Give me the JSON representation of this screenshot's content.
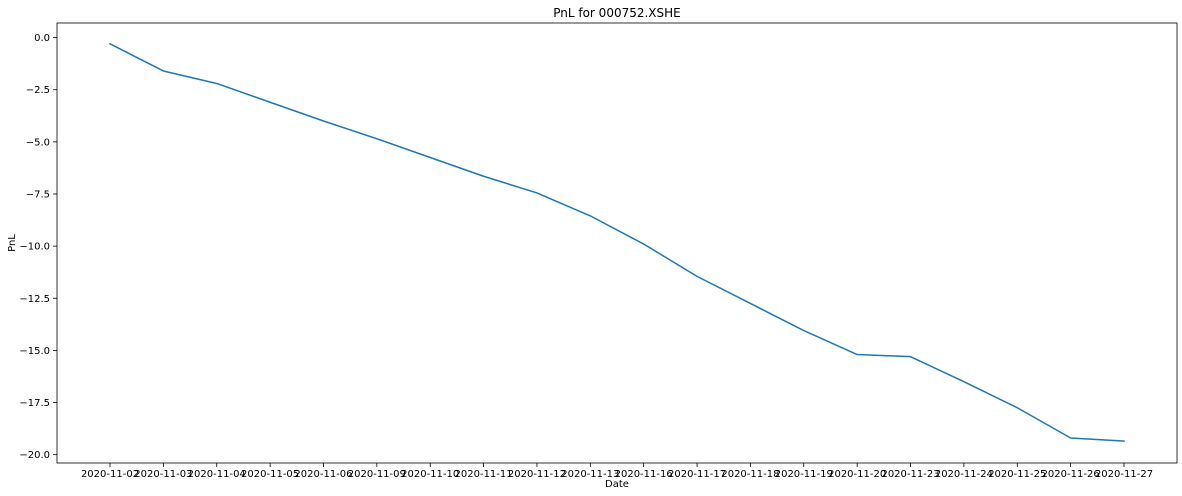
{
  "chart_data": {
    "type": "line",
    "title": "PnL for 000752.XSHE",
    "xlabel": "Date",
    "ylabel": "PnL",
    "categories": [
      "2020-11-02",
      "2020-11-03",
      "2020-11-04",
      "2020-11-05",
      "2020-11-06",
      "2020-11-09",
      "2020-11-10",
      "2020-11-11",
      "2020-11-12",
      "2020-11-13",
      "2020-11-16",
      "2020-11-17",
      "2020-11-18",
      "2020-11-19",
      "2020-11-20",
      "2020-11-23",
      "2020-11-24",
      "2020-11-25",
      "2020-11-26",
      "2020-11-27"
    ],
    "series": [
      {
        "values": [
          -0.3,
          -1.6,
          -2.2,
          -3.1,
          -4.0,
          -4.85,
          -5.75,
          -6.65,
          -7.45,
          -8.55,
          -9.9,
          -11.45,
          -12.75,
          -14.05,
          -15.2,
          -15.3,
          -16.5,
          -17.75,
          -19.2,
          -19.35
        ],
        "color": "#1f77b4"
      }
    ],
    "ylim": [
      -20.4,
      0.7
    ],
    "yticks": [
      0.0,
      -2.5,
      -5.0,
      -7.5,
      -10.0,
      -12.5,
      -15.0,
      -17.5,
      -20.0
    ],
    "ytick_labels": [
      "0.0",
      "−2.5",
      "−5.0",
      "−7.5",
      "−10.0",
      "−12.5",
      "−15.0",
      "−17.5",
      "−20.0"
    ],
    "grid": false,
    "legend": "none"
  }
}
